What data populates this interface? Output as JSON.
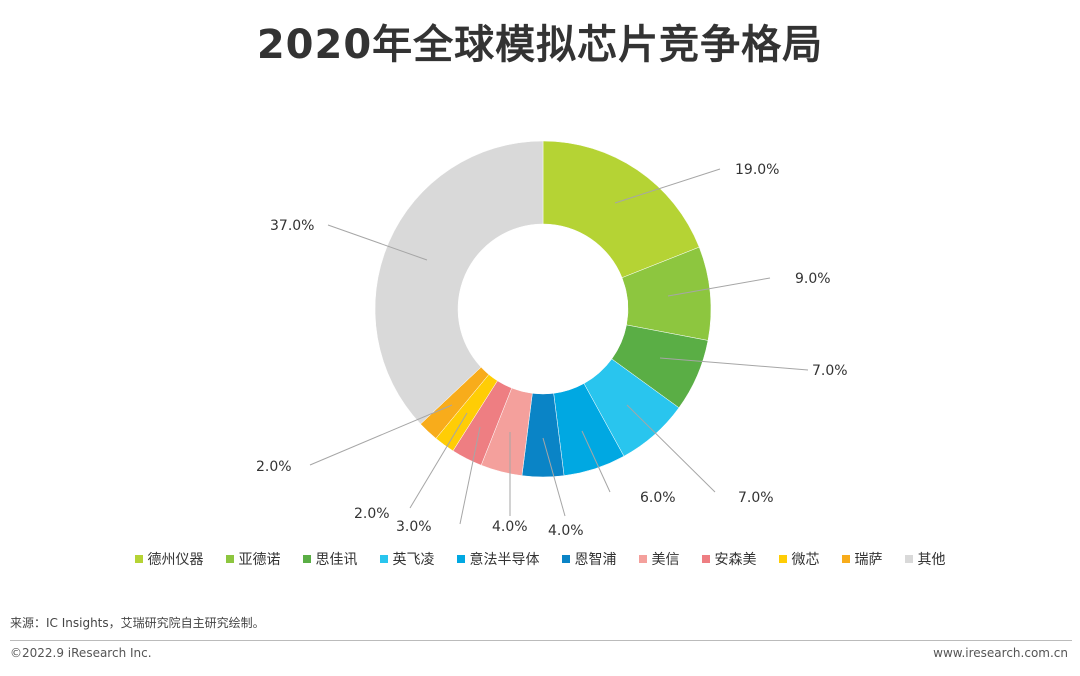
{
  "page": {
    "source": "来源：IC Insights，艾瑞研究院自主研究绘制。",
    "copyright": "©2022.9 iResearch Inc.",
    "website": "www.iresearch.com.cn"
  },
  "chart_data": {
    "type": "pie",
    "donut": true,
    "title": "2020年全球模拟芯片竞争格局",
    "legend_position": "bottom",
    "categories": [
      "德州仪器",
      "亚德诺",
      "思佳讯",
      "英飞凌",
      "意法半导体",
      "恩智浦",
      "美信",
      "安森美",
      "微芯",
      "瑞萨",
      "其他"
    ],
    "values": [
      19.0,
      9.0,
      7.0,
      7.0,
      6.0,
      4.0,
      4.0,
      3.0,
      2.0,
      2.0,
      37.0
    ],
    "labels": [
      "19.0%",
      "9.0%",
      "7.0%",
      "7.0%",
      "6.0%",
      "4.0%",
      "4.0%",
      "3.0%",
      "2.0%",
      "2.0%",
      "37.0%"
    ],
    "colors": [
      "#b5d334",
      "#8dc63f",
      "#5aae45",
      "#29c5ee",
      "#00a8e2",
      "#0a84c6",
      "#f4a09c",
      "#ee7e82",
      "#ffcd05",
      "#f8ac1b",
      "#d9d9d9"
    ]
  }
}
